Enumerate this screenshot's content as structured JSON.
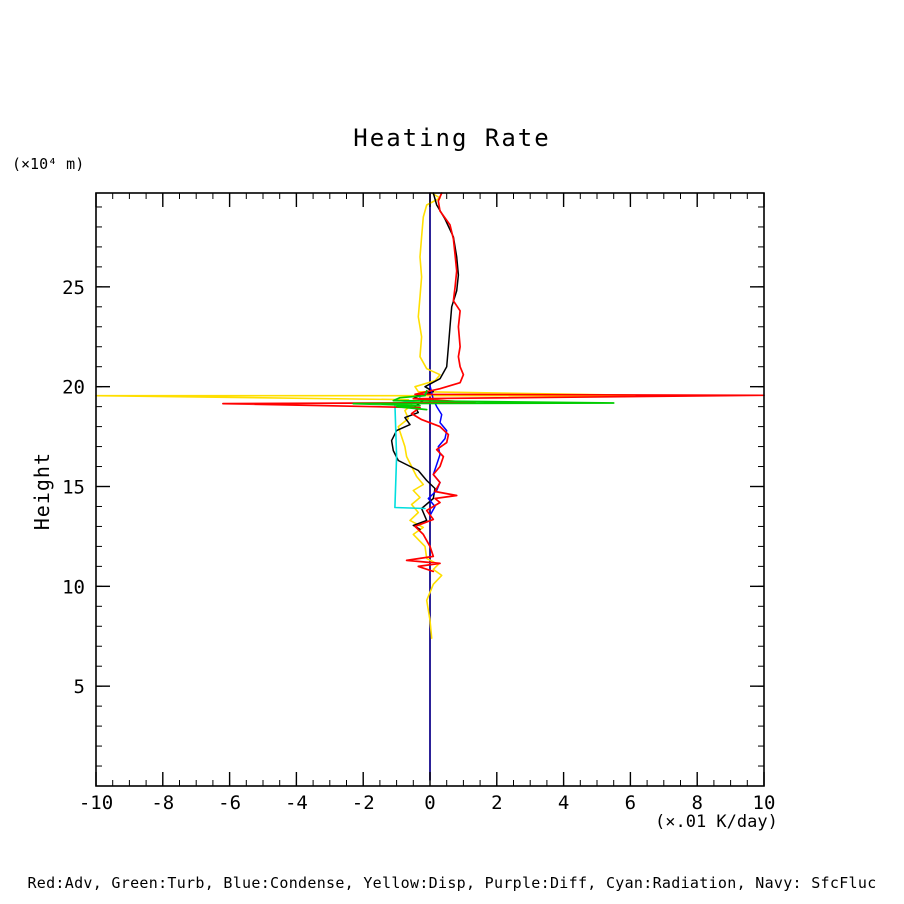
{
  "title": "Heating Rate",
  "y_unit_label": "(×10⁴ m)",
  "y_axis_label": "Height",
  "x_unit_label": "(×.01 K/day)",
  "caption": "Red:Adv, Green:Turb, Blue:Condense, Yellow:Disp, Purple:Diff, Cyan:Radiation, Navy: SfcFluc",
  "legend": [
    {
      "color_name": "Red",
      "meaning": "Adv",
      "hex": "#ff0000"
    },
    {
      "color_name": "Green",
      "meaning": "Turb",
      "hex": "#00cc00"
    },
    {
      "color_name": "Blue",
      "meaning": "Condense",
      "hex": "#0000ff"
    },
    {
      "color_name": "Yellow",
      "meaning": "Disp",
      "hex": "#ffdf00"
    },
    {
      "color_name": "Purple",
      "meaning": "Diff",
      "hex": "#a020f0"
    },
    {
      "color_name": "Cyan",
      "meaning": "Radiation",
      "hex": "#00dede"
    },
    {
      "color_name": "Navy",
      "meaning": "SfcFluc",
      "hex": "#000080"
    }
  ],
  "chart_data": {
    "type": "line",
    "title": "Heating Rate",
    "xlabel": "(×.01 K/day)",
    "ylabel": "Height (×10⁴ m)",
    "xlim": [
      -10,
      10
    ],
    "ylim": [
      0,
      29.7
    ],
    "grid": false,
    "x_major_ticks": [
      -10,
      -8,
      -6,
      -4,
      -2,
      0,
      2,
      4,
      6,
      8,
      10
    ],
    "x_minor_step": 0.5,
    "y_major_ticks": [
      5,
      10,
      15,
      20,
      25
    ],
    "y_minor_step": 1,
    "frame_color": "#000000",
    "series": [
      {
        "name": "Diff",
        "color": "#a020f0",
        "width": 1.4,
        "points": [
          [
            0,
            0.3
          ],
          [
            0,
            29.7
          ]
        ]
      },
      {
        "name": "SfcFluc",
        "color": "#000080",
        "width": 1.6,
        "points": [
          [
            0,
            0.3
          ],
          [
            0,
            29.7
          ]
        ]
      },
      {
        "name": "Disp",
        "color": "#ffdf00",
        "width": 1.6,
        "points": [
          [
            0.05,
            7.4
          ],
          [
            0,
            8.3
          ],
          [
            -0.1,
            9.3
          ],
          [
            0.1,
            10.1
          ],
          [
            0.35,
            10.55
          ],
          [
            0.1,
            10.85
          ],
          [
            0.25,
            11.1
          ],
          [
            -0.1,
            11.4
          ],
          [
            -0.15,
            12.0
          ],
          [
            -0.5,
            12.6
          ],
          [
            -0.2,
            12.95
          ],
          [
            -0.6,
            13.3
          ],
          [
            -0.35,
            13.7
          ],
          [
            -0.55,
            14.1
          ],
          [
            -0.3,
            14.45
          ],
          [
            -0.5,
            14.8
          ],
          [
            -0.2,
            15.1
          ],
          [
            -0.4,
            15.5
          ],
          [
            -0.55,
            16.0
          ],
          [
            -0.7,
            16.5
          ],
          [
            -0.75,
            17.0
          ],
          [
            -0.85,
            17.5
          ],
          [
            -0.95,
            18.0
          ],
          [
            -0.65,
            18.4
          ],
          [
            -0.75,
            18.8
          ],
          [
            -0.55,
            19.1
          ],
          [
            -0.65,
            19.35
          ],
          [
            -10,
            19.55
          ],
          [
            6.9,
            19.55
          ],
          [
            -0.35,
            19.75
          ],
          [
            -0.45,
            20.0
          ],
          [
            0.15,
            20.3
          ],
          [
            0.3,
            20.6
          ],
          [
            -0.1,
            20.9
          ],
          [
            -0.3,
            21.5
          ],
          [
            -0.25,
            22.5
          ],
          [
            -0.35,
            23.5
          ],
          [
            -0.3,
            24.5
          ],
          [
            -0.25,
            25.5
          ],
          [
            -0.3,
            26.5
          ],
          [
            -0.25,
            27.5
          ],
          [
            -0.2,
            28.5
          ],
          [
            -0.1,
            29.1
          ],
          [
            0.3,
            29.45
          ],
          [
            0.05,
            29.7
          ]
        ]
      },
      {
        "name": "black",
        "color": "#000000",
        "width": 1.5,
        "points": [
          [
            -0.3,
            12.85
          ],
          [
            -0.5,
            13.05
          ],
          [
            -0.1,
            13.3
          ],
          [
            -0.25,
            13.9
          ],
          [
            0.1,
            14.4
          ],
          [
            0.15,
            14.9
          ],
          [
            -0.1,
            15.3
          ],
          [
            -0.35,
            15.8
          ],
          [
            -0.95,
            16.3
          ],
          [
            -1.1,
            16.8
          ],
          [
            -1.15,
            17.3
          ],
          [
            -1.0,
            17.8
          ],
          [
            -0.6,
            18.1
          ],
          [
            -0.75,
            18.45
          ],
          [
            -0.35,
            18.7
          ],
          [
            -0.45,
            19.0
          ],
          [
            -0.2,
            19.3
          ],
          [
            -0.5,
            19.5
          ],
          [
            0.1,
            19.75
          ],
          [
            -0.15,
            20.0
          ],
          [
            0.3,
            20.4
          ],
          [
            0.5,
            21.0
          ],
          [
            0.55,
            22.0
          ],
          [
            0.6,
            23.0
          ],
          [
            0.65,
            24.0
          ],
          [
            0.8,
            24.8
          ],
          [
            0.85,
            25.6
          ],
          [
            0.8,
            26.5
          ],
          [
            0.7,
            27.5
          ],
          [
            0.45,
            28.4
          ],
          [
            0.2,
            29.1
          ],
          [
            0.1,
            29.7
          ]
        ]
      },
      {
        "name": "Radiation",
        "color": "#00dede",
        "width": 1.6,
        "points": [
          [
            -0.15,
            13.9
          ],
          [
            -1.05,
            13.95
          ],
          [
            -1.0,
            16.5
          ],
          [
            -1.05,
            19.15
          ],
          [
            -0.35,
            19.3
          ],
          [
            -0.3,
            19.5
          ],
          [
            -0.1,
            19.7
          ]
        ]
      },
      {
        "name": "Condense",
        "color": "#0000ff",
        "width": 1.5,
        "points": [
          [
            0,
            13.55
          ],
          [
            0.15,
            14.0
          ],
          [
            -0.05,
            14.4
          ],
          [
            0.2,
            14.8
          ],
          [
            0.3,
            15.2
          ],
          [
            0.1,
            15.6
          ],
          [
            0.2,
            16.1
          ],
          [
            0.3,
            16.6
          ],
          [
            0.25,
            17.0
          ],
          [
            0.45,
            17.4
          ],
          [
            0.5,
            17.8
          ],
          [
            0.3,
            18.2
          ],
          [
            0.35,
            18.6
          ],
          [
            0.2,
            19.0
          ],
          [
            0.1,
            19.35
          ],
          [
            0.05,
            19.7
          ],
          [
            0,
            20.05
          ]
        ]
      },
      {
        "name": "Adv",
        "color": "#ff0000",
        "width": 1.7,
        "points": [
          [
            0.1,
            10.75
          ],
          [
            -0.35,
            11.0
          ],
          [
            0.3,
            11.15
          ],
          [
            -0.7,
            11.3
          ],
          [
            0.1,
            11.5
          ],
          [
            0,
            12.0
          ],
          [
            -0.2,
            12.6
          ],
          [
            -0.45,
            13.0
          ],
          [
            0.1,
            13.35
          ],
          [
            -0.1,
            13.8
          ],
          [
            0.3,
            14.2
          ],
          [
            0.15,
            14.4
          ],
          [
            0.8,
            14.55
          ],
          [
            0.15,
            14.75
          ],
          [
            0.3,
            15.2
          ],
          [
            0.1,
            15.6
          ],
          [
            0.3,
            16.0
          ],
          [
            0.4,
            16.5
          ],
          [
            0.2,
            16.85
          ],
          [
            0.5,
            17.2
          ],
          [
            0.55,
            17.6
          ],
          [
            0.3,
            18.0
          ],
          [
            -0.25,
            18.35
          ],
          [
            -0.55,
            18.65
          ],
          [
            -0.3,
            18.95
          ],
          [
            -6.2,
            19.15
          ],
          [
            1.35,
            19.2
          ],
          [
            -0.5,
            19.4
          ],
          [
            10,
            19.57
          ],
          [
            -0.45,
            19.62
          ],
          [
            0.3,
            19.9
          ],
          [
            0.9,
            20.2
          ],
          [
            1.0,
            20.6
          ],
          [
            0.9,
            21.0
          ],
          [
            0.85,
            21.5
          ],
          [
            0.9,
            22.0
          ],
          [
            0.85,
            23.0
          ],
          [
            0.9,
            23.8
          ],
          [
            0.7,
            24.3
          ],
          [
            0.75,
            25.0
          ],
          [
            0.8,
            25.8
          ],
          [
            0.75,
            26.6
          ],
          [
            0.7,
            27.4
          ],
          [
            0.6,
            28.1
          ],
          [
            0.3,
            28.8
          ],
          [
            0.25,
            29.3
          ],
          [
            0.35,
            29.7
          ]
        ]
      },
      {
        "name": "Turb",
        "color": "#00cc00",
        "width": 1.7,
        "points": [
          [
            -0.1,
            18.85
          ],
          [
            -1.0,
            19.0
          ],
          [
            -0.3,
            19.05
          ],
          [
            -2.3,
            19.15
          ],
          [
            5.5,
            19.18
          ],
          [
            -1.1,
            19.3
          ],
          [
            -0.9,
            19.45
          ],
          [
            -0.15,
            19.55
          ],
          [
            -0.1,
            19.8
          ]
        ]
      }
    ]
  }
}
